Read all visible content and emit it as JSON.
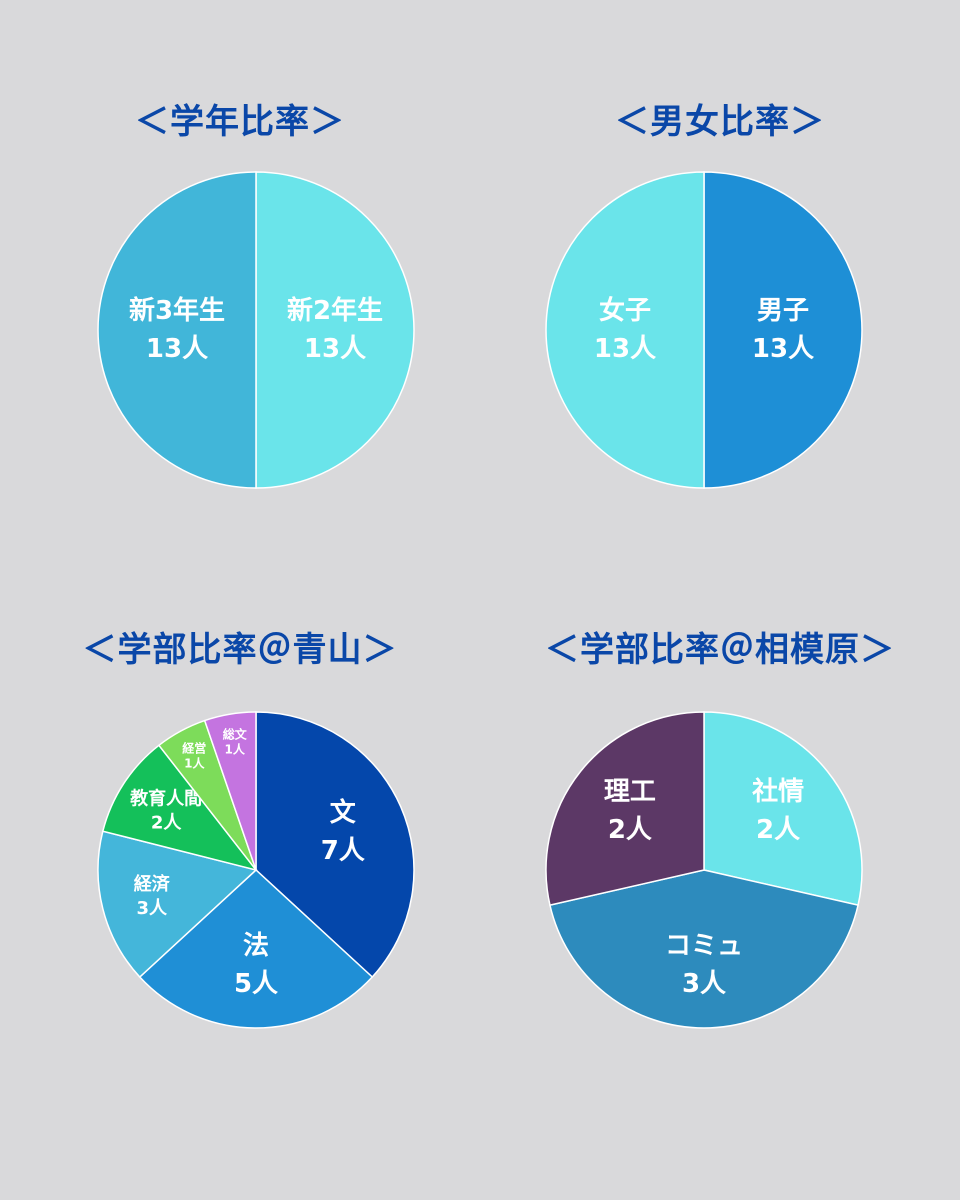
{
  "chart_data": [
    {
      "type": "pie",
      "title": "＜学年比率＞",
      "slices": [
        {
          "name": "新2年生",
          "count": "13人",
          "value": 13,
          "color": "#6ae4ea"
        },
        {
          "name": "新3年生",
          "count": "13人",
          "value": 13,
          "color": "#41b6d9"
        }
      ]
    },
    {
      "type": "pie",
      "title": "＜男女比率＞",
      "slices": [
        {
          "name": "男子",
          "count": "13人",
          "value": 13,
          "color": "#1e8fd6"
        },
        {
          "name": "女子",
          "count": "13人",
          "value": 13,
          "color": "#6ae4ea"
        }
      ]
    },
    {
      "type": "pie",
      "title": "＜学部比率＠青山＞",
      "slices": [
        {
          "name": "文",
          "count": "7人",
          "value": 7,
          "color": "#0447ab"
        },
        {
          "name": "法",
          "count": "5人",
          "value": 5,
          "color": "#1f8fd6"
        },
        {
          "name": "経済",
          "count": "3人",
          "value": 3,
          "color": "#44b6da"
        },
        {
          "name": "教育人間",
          "count": "2人",
          "value": 2,
          "color": "#14c05a"
        },
        {
          "name": "経営",
          "count": "1人",
          "value": 1,
          "color": "#7ddc5a"
        },
        {
          "name": "総文",
          "count": "1人",
          "value": 1,
          "color": "#c474e0"
        }
      ]
    },
    {
      "type": "pie",
      "title": "＜学部比率＠相模原＞",
      "slices": [
        {
          "name": "社情",
          "count": "2人",
          "value": 2,
          "color": "#6ae4ea"
        },
        {
          "name": "コミュ",
          "count": "3人",
          "value": 3,
          "color": "#2d8bbd"
        },
        {
          "name": "理工",
          "count": "2人",
          "value": 2,
          "color": "#5c3866"
        }
      ]
    }
  ]
}
